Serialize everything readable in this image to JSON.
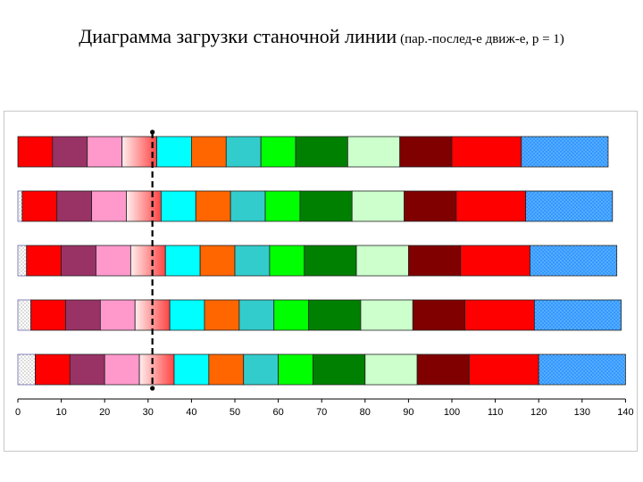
{
  "title": {
    "main": "Диаграмма загрузки станочной линии",
    "note": "(пар.-послед-е движ-е, p = 1)"
  },
  "chart_data": {
    "type": "bar",
    "orientation": "horizontal",
    "stacked": true,
    "title": "",
    "xlabel": "",
    "ylabel": "",
    "xlim": [
      0,
      140
    ],
    "xticks": [
      0,
      10,
      20,
      30,
      40,
      50,
      60,
      70,
      80,
      90,
      100,
      110,
      120,
      130,
      140
    ],
    "grid": false,
    "legend": "none",
    "reference_line": {
      "x": 31,
      "style": "dashed",
      "color": "#000000"
    },
    "operation_colors": [
      "#ff0000",
      "#993366",
      "#ff99cc",
      "#ff6666",
      "#00ffff",
      "#ff6600",
      "#33cccc",
      "#00ff00",
      "#008000",
      "#ccffcc",
      "#800000",
      "#ff0000",
      "#3399ff"
    ],
    "spacer_colors": [
      "#ffffff",
      "#ccccff",
      "#9999ff",
      "#99ccff",
      "#6666ff"
    ],
    "rows": [
      {
        "offset": 0,
        "durations": [
          8,
          8,
          8,
          8,
          8,
          8,
          8,
          8,
          12,
          12,
          12,
          16,
          20
        ]
      },
      {
        "offset": 1,
        "durations": [
          8,
          8,
          8,
          8,
          8,
          8,
          8,
          8,
          12,
          12,
          12,
          16,
          20
        ]
      },
      {
        "offset": 2,
        "durations": [
          8,
          8,
          8,
          8,
          8,
          8,
          8,
          8,
          12,
          12,
          12,
          16,
          20
        ]
      },
      {
        "offset": 3,
        "durations": [
          8,
          8,
          8,
          8,
          8,
          8,
          8,
          8,
          12,
          12,
          12,
          16,
          20
        ]
      },
      {
        "offset": 4,
        "durations": [
          8,
          8,
          8,
          8,
          8,
          8,
          8,
          8,
          12,
          12,
          12,
          16,
          20
        ]
      }
    ]
  }
}
